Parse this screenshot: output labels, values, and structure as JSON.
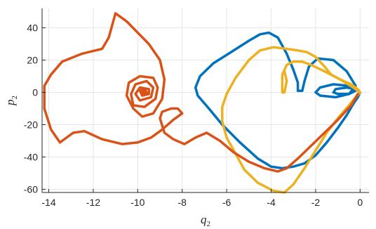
{
  "chart_data": {
    "type": "line",
    "xlabel": {
      "base": "q",
      "sub": "2"
    },
    "ylabel": {
      "base": "p",
      "sub": "2"
    },
    "xlim": [
      -14.3,
      0.4
    ],
    "ylim": [
      -62,
      52
    ],
    "xticks": [
      -14,
      -12,
      -10,
      -8,
      -6,
      -4,
      -2,
      0
    ],
    "yticks": [
      40,
      20,
      0,
      -20,
      -40,
      -60
    ],
    "xtick_labels": [
      "-14",
      "-12",
      "-10",
      "-8",
      "-6",
      "-4",
      "-2",
      "0"
    ],
    "ytick_labels": [
      "40",
      "20",
      "0",
      "-20",
      "-40",
      "-60"
    ],
    "grid": true,
    "colors": {
      "orange": "#D95319",
      "blue": "#0072BD",
      "yellow": "#EDB120"
    },
    "series": [
      {
        "color": "#0072BD",
        "points": [
          [
            0,
            0
          ],
          [
            -0.2,
            2
          ],
          [
            -0.6,
            3
          ],
          [
            -1.1,
            2
          ],
          [
            -1.2,
            0
          ],
          [
            -1.0,
            -1
          ],
          [
            -0.5,
            -1
          ],
          [
            -0.2,
            1
          ],
          [
            -0.5,
            4
          ],
          [
            -1.2,
            5
          ],
          [
            -1.8,
            3
          ],
          [
            -2.0,
            0
          ],
          [
            -1.8,
            -2
          ],
          [
            -1.1,
            -3
          ],
          [
            -0.5,
            -1
          ],
          [
            -0.2,
            4
          ],
          [
            -0.6,
            13
          ],
          [
            -1.2,
            20
          ],
          [
            -1.9,
            21
          ],
          [
            -2.3,
            16
          ],
          [
            -2.5,
            7
          ],
          [
            -2.6,
            1
          ],
          [
            -2.8,
            1
          ],
          [
            -2.8,
            6
          ],
          [
            -3.0,
            14
          ],
          [
            -3.3,
            24
          ],
          [
            -3.7,
            34
          ],
          [
            -4.1,
            37
          ],
          [
            -4.5,
            36
          ],
          [
            -5.0,
            32
          ],
          [
            -5.8,
            25
          ],
          [
            -6.6,
            18
          ],
          [
            -7.2,
            10
          ],
          [
            -7.4,
            3
          ],
          [
            -7.3,
            -2
          ],
          [
            -6.8,
            -10
          ],
          [
            -6.2,
            -20
          ],
          [
            -5.4,
            -31
          ],
          [
            -4.6,
            -41
          ],
          [
            -4.0,
            -46
          ],
          [
            -3.5,
            -47
          ],
          [
            -3.0,
            -46
          ],
          [
            -2.5,
            -44
          ],
          [
            -2.0,
            -39
          ],
          [
            -1.5,
            -31
          ],
          [
            -1.0,
            -22
          ],
          [
            -0.6,
            -14
          ],
          [
            -0.3,
            -7
          ],
          [
            -0.1,
            -3
          ],
          [
            0,
            0
          ]
        ]
      },
      {
        "color": "#EDB120",
        "points": [
          [
            0,
            0
          ],
          [
            -0.2,
            -3
          ],
          [
            -0.5,
            -8
          ],
          [
            -1.0,
            -16
          ],
          [
            -1.5,
            -25
          ],
          [
            -2.0,
            -36
          ],
          [
            -2.5,
            -47
          ],
          [
            -3.0,
            -57
          ],
          [
            -3.4,
            -62
          ],
          [
            -3.9,
            -61
          ],
          [
            -4.6,
            -56
          ],
          [
            -5.2,
            -48
          ],
          [
            -5.6,
            -38
          ],
          [
            -6.0,
            -28
          ],
          [
            -6.2,
            -18
          ],
          [
            -6.2,
            -9
          ],
          [
            -6.0,
            -1
          ],
          [
            -5.6,
            9
          ],
          [
            -5.0,
            20
          ],
          [
            -4.5,
            26
          ],
          [
            -3.9,
            28
          ],
          [
            -3.3,
            27
          ],
          [
            -2.8,
            26
          ],
          [
            -2.4,
            25
          ],
          [
            -2.0,
            22
          ],
          [
            -1.6,
            16
          ],
          [
            -1.3,
            11
          ],
          [
            -0.9,
            8
          ],
          [
            -0.4,
            5
          ],
          [
            -0.1,
            2
          ],
          [
            0,
            0
          ],
          [
            -0.3,
            3
          ],
          [
            -0.9,
            8
          ],
          [
            -1.6,
            13
          ],
          [
            -2.2,
            17
          ],
          [
            -2.6,
            19
          ],
          [
            -3.0,
            19
          ],
          [
            -3.3,
            17
          ],
          [
            -3.5,
            11
          ],
          [
            -3.5,
            0
          ],
          [
            -3.4,
            0
          ],
          [
            -3.3,
            7
          ],
          [
            -3.4,
            13
          ]
        ]
      },
      {
        "color": "#D95319",
        "points": [
          [
            -0.1,
            -1
          ],
          [
            -0.4,
            -8
          ],
          [
            -1.0,
            -17
          ],
          [
            -1.6,
            -25
          ],
          [
            -2.2,
            -33
          ],
          [
            -2.8,
            -41
          ],
          [
            -3.3,
            -47
          ],
          [
            -3.7,
            -49
          ],
          [
            -4.3,
            -47
          ],
          [
            -5.0,
            -43
          ],
          [
            -5.7,
            -37
          ],
          [
            -6.3,
            -30
          ],
          [
            -6.9,
            -25
          ],
          [
            -7.4,
            -28
          ],
          [
            -7.9,
            -32
          ],
          [
            -8.4,
            -29
          ],
          [
            -8.8,
            -25
          ],
          [
            -9.0,
            -16
          ],
          [
            -8.9,
            -12
          ],
          [
            -8.5,
            -10
          ],
          [
            -8.2,
            -10
          ],
          [
            -8.0,
            -13
          ],
          [
            -8.4,
            -17
          ],
          [
            -8.9,
            -23
          ],
          [
            -9.4,
            -28
          ],
          [
            -10.0,
            -31
          ],
          [
            -10.7,
            -32
          ],
          [
            -11.6,
            -29
          ],
          [
            -12.4,
            -24
          ],
          [
            -12.9,
            -25
          ],
          [
            -13.5,
            -31
          ],
          [
            -13.9,
            -23
          ],
          [
            -14.2,
            -10
          ],
          [
            -14.2,
            4
          ],
          [
            -13.9,
            11
          ],
          [
            -13.4,
            19
          ],
          [
            -12.5,
            24
          ],
          [
            -11.6,
            27
          ],
          [
            -11.3,
            34
          ],
          [
            -11.0,
            49
          ],
          [
            -10.5,
            44
          ],
          [
            -10.0,
            37
          ],
          [
            -9.5,
            30
          ],
          [
            -9.0,
            20
          ],
          [
            -8.8,
            8
          ],
          [
            -8.9,
            -4
          ],
          [
            -9.3,
            -13
          ],
          [
            -9.8,
            -15
          ],
          [
            -10.2,
            -10
          ],
          [
            -10.5,
            -2
          ],
          [
            -10.4,
            6
          ],
          [
            -9.9,
            10
          ],
          [
            -9.3,
            9
          ],
          [
            -9.1,
            3
          ],
          [
            -9.2,
            -4
          ],
          [
            -9.7,
            -9
          ],
          [
            -10.2,
            -8
          ],
          [
            -10.3,
            -1
          ],
          [
            -10.1,
            5
          ],
          [
            -9.6,
            7
          ],
          [
            -9.3,
            3
          ],
          [
            -9.4,
            -3
          ],
          [
            -9.9,
            -5
          ],
          [
            -10.1,
            -1
          ],
          [
            -9.9,
            3
          ],
          [
            -9.5,
            2
          ],
          [
            -9.5,
            -1
          ],
          [
            -9.8,
            -2
          ],
          [
            -9.9,
            1
          ],
          [
            -9.7,
            2
          ],
          [
            -9.6,
            0
          ],
          [
            -9.8,
            -1
          ],
          [
            -9.8,
            1
          ],
          [
            -9.7,
            0
          ]
        ]
      }
    ]
  }
}
